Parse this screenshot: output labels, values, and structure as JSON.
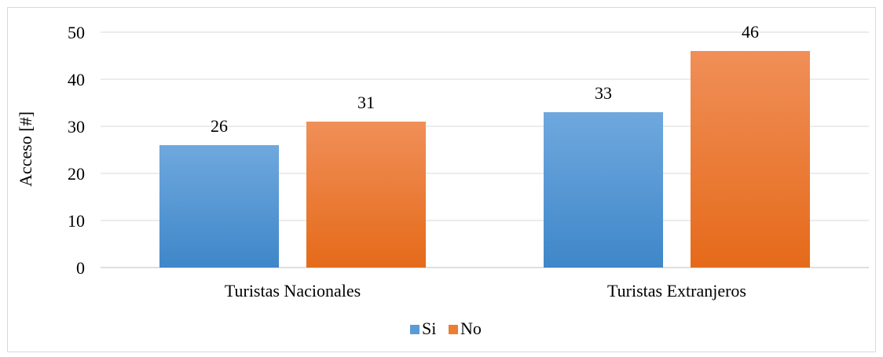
{
  "chart_data": {
    "type": "bar",
    "title": "",
    "xlabel": "",
    "ylabel": "Acceso [#]",
    "ylim": [
      0,
      50
    ],
    "yticks": [
      0,
      10,
      20,
      30,
      40,
      50
    ],
    "categories": [
      "Turistas Nacionales",
      "Turistas Extranjeros"
    ],
    "series": [
      {
        "name": "Si",
        "values": [
          26,
          33
        ],
        "color": "#5b9bd5"
      },
      {
        "name": "No",
        "values": [
          31,
          46
        ],
        "color": "#ed7d31"
      }
    ],
    "grid": true,
    "legend": "bottom",
    "data_labels": true
  }
}
